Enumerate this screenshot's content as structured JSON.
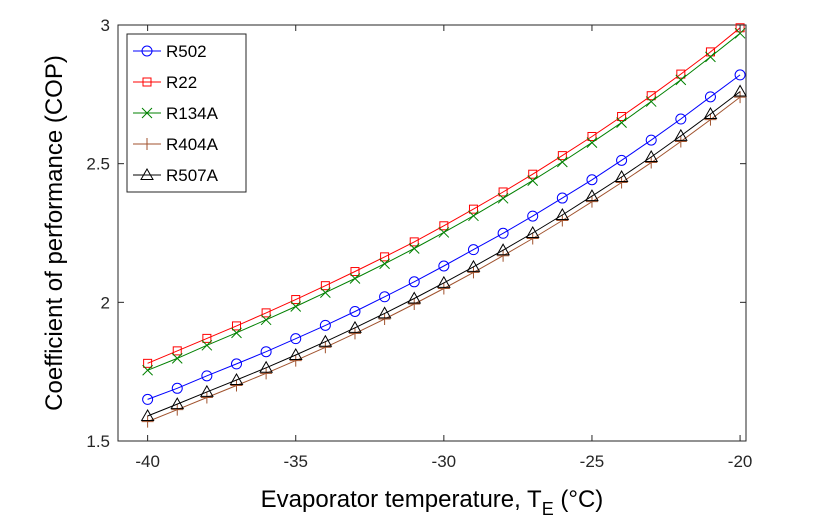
{
  "chart_data": {
    "type": "line",
    "title": "",
    "xlabel": "Evaporator temperature, T",
    "xlabel_sub": "E",
    "xlabel_suffix": " (°C)",
    "ylabel": "Coefficient of performance (COP)",
    "xlim": [
      -41,
      -19.8
    ],
    "ylim": [
      1.5,
      3.0
    ],
    "xticks": [
      -40,
      -35,
      -30,
      -25,
      -20
    ],
    "yticks": [
      1.5,
      2,
      2.5,
      3
    ],
    "grid": false,
    "legend_position": "top-left",
    "x": [
      -40,
      -39,
      -38,
      -37,
      -36,
      -35,
      -34,
      -33,
      -32,
      -31,
      -30,
      -29,
      -28,
      -27,
      -26,
      -25,
      -24,
      -23,
      -22,
      -21,
      -20
    ],
    "series": [
      {
        "name": "R502",
        "color": "#0000ff",
        "marker": "circle",
        "values": [
          1.65,
          1.69,
          1.735,
          1.778,
          1.822,
          1.869,
          1.917,
          1.967,
          2.02,
          2.074,
          2.131,
          2.19,
          2.249,
          2.311,
          2.376,
          2.442,
          2.512,
          2.585,
          2.661,
          2.741,
          2.82
        ]
      },
      {
        "name": "R22",
        "color": "#ff0000",
        "marker": "square",
        "values": [
          1.78,
          1.825,
          1.87,
          1.915,
          1.962,
          2.01,
          2.06,
          2.111,
          2.164,
          2.218,
          2.276,
          2.336,
          2.398,
          2.462,
          2.529,
          2.598,
          2.67,
          2.745,
          2.823,
          2.903,
          2.99
        ]
      },
      {
        "name": "R134A",
        "color": "#008000",
        "marker": "x",
        "values": [
          1.755,
          1.798,
          1.845,
          1.89,
          1.937,
          1.985,
          2.035,
          2.086,
          2.139,
          2.194,
          2.252,
          2.312,
          2.375,
          2.439,
          2.506,
          2.576,
          2.648,
          2.724,
          2.802,
          2.885,
          2.97
        ]
      },
      {
        "name": "R404A",
        "color": "#a0522d",
        "marker": "plus",
        "values": [
          1.57,
          1.613,
          1.657,
          1.7,
          1.744,
          1.79,
          1.838,
          1.888,
          1.94,
          1.994,
          2.05,
          2.108,
          2.168,
          2.23,
          2.295,
          2.363,
          2.432,
          2.504,
          2.58,
          2.659,
          2.74
        ]
      },
      {
        "name": "R507A",
        "color": "#000000",
        "marker": "triangle",
        "values": [
          1.59,
          1.633,
          1.677,
          1.72,
          1.764,
          1.81,
          1.858,
          1.908,
          1.96,
          2.014,
          2.07,
          2.128,
          2.188,
          2.25,
          2.315,
          2.383,
          2.452,
          2.524,
          2.6,
          2.679,
          2.76
        ]
      }
    ]
  }
}
